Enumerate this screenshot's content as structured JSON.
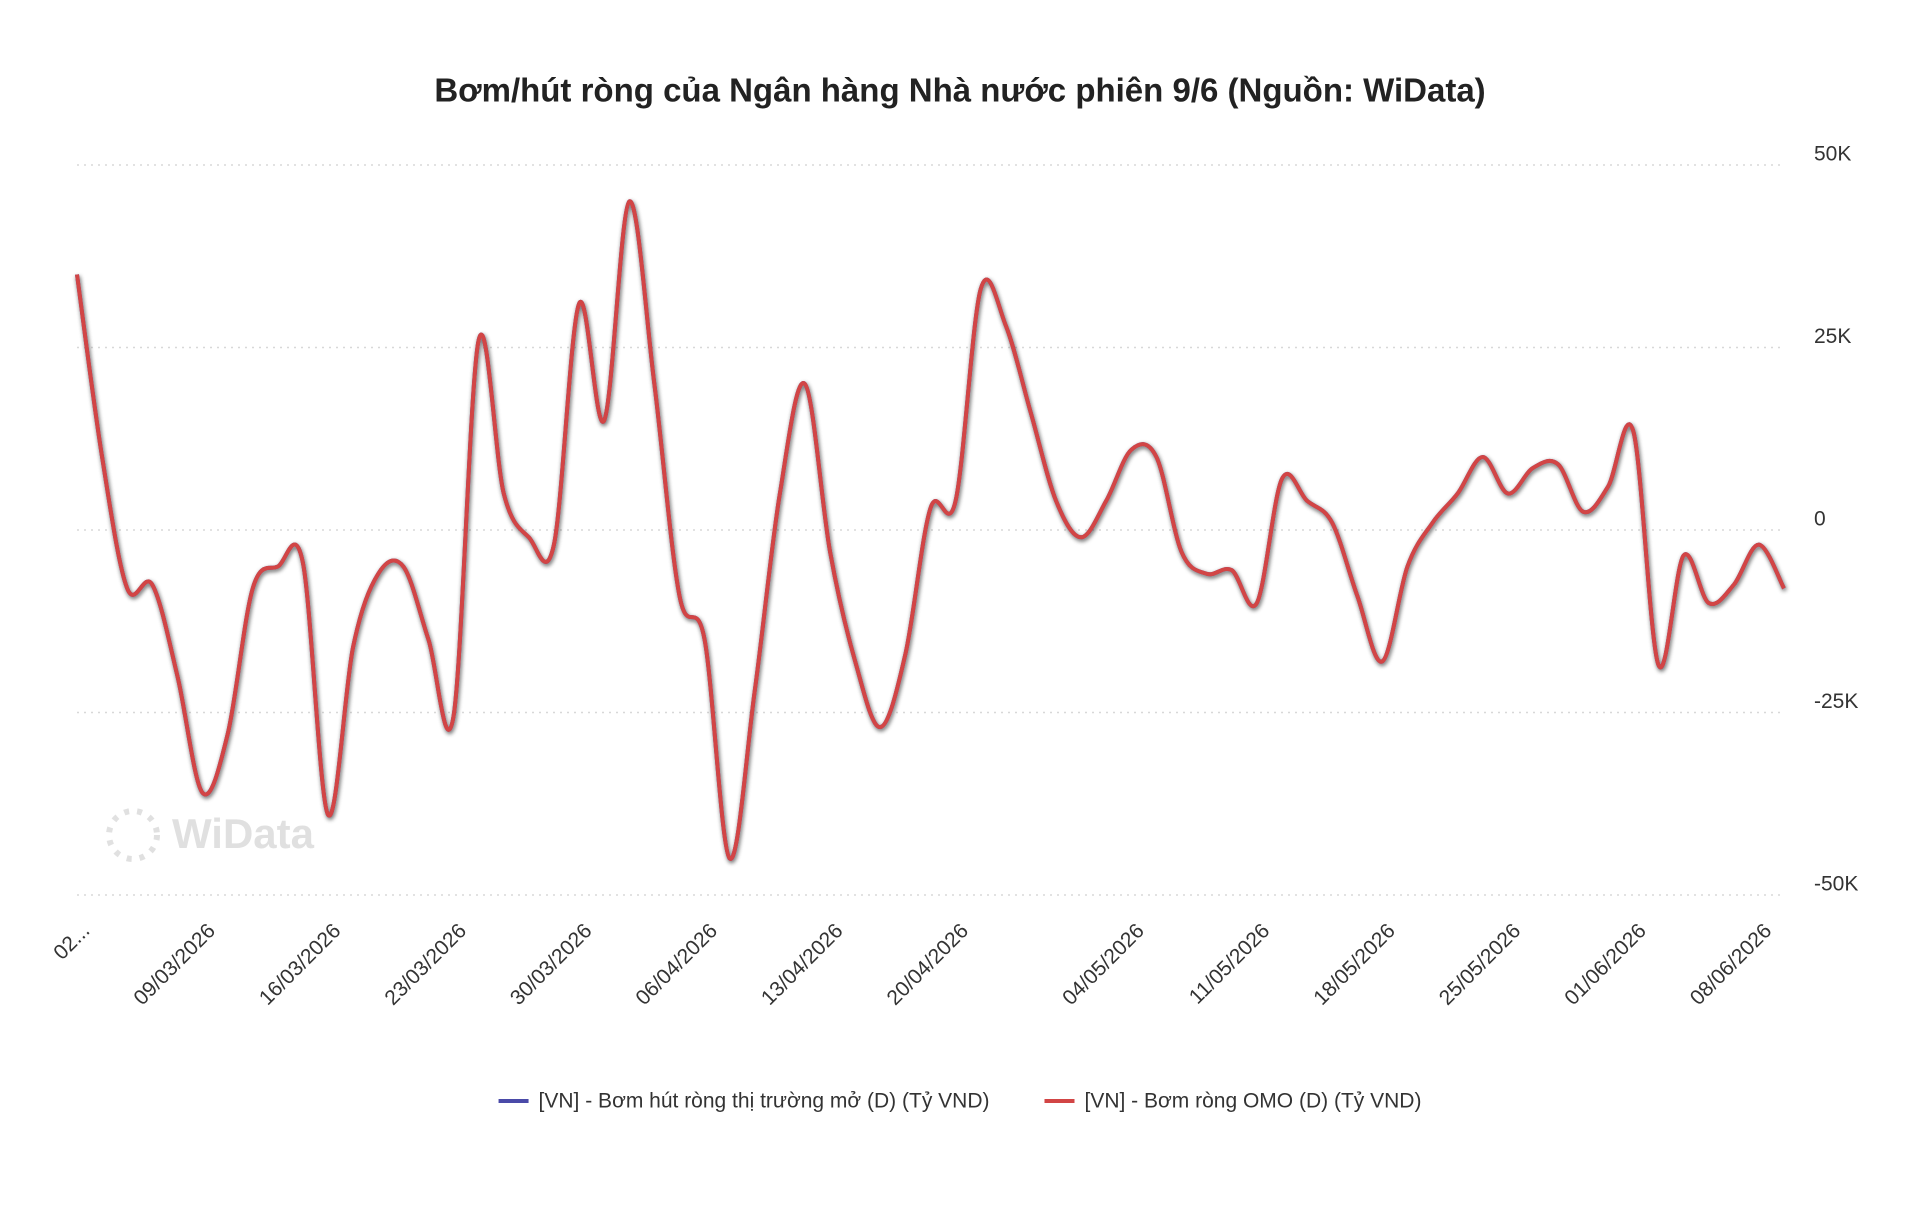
{
  "chart_data": {
    "type": "line",
    "title": "Bơm/hút ròng của Ngân hàng Nhà nước phiên 9/6 (Nguồn: WiData)",
    "watermark": "WiData",
    "categories": [
      "02...",
      null,
      null,
      null,
      null,
      "09/03/2026",
      null,
      null,
      null,
      null,
      "16/03/2026",
      null,
      null,
      null,
      null,
      "23/03/2026",
      null,
      null,
      null,
      null,
      "30/03/2026",
      null,
      null,
      null,
      null,
      "06/04/2026",
      null,
      null,
      null,
      null,
      "13/04/2026",
      null,
      null,
      null,
      null,
      "20/04/2026",
      null,
      null,
      null,
      null,
      null,
      null,
      "04/05/2026",
      null,
      null,
      null,
      null,
      "11/05/2026",
      null,
      null,
      null,
      null,
      "18/05/2026",
      null,
      null,
      null,
      null,
      "25/05/2026",
      null,
      null,
      null,
      null,
      "01/06/2026",
      null,
      null,
      null,
      null,
      "08/06/2026",
      null
    ],
    "series": [
      {
        "name": "[VN] - Bơm hút ròng thị trường mở (D) (Tỷ VND)",
        "color": "#4a4aa8",
        "values": [
          35000,
          10000,
          -8000,
          -7500,
          -20000,
          -36000,
          -28000,
          -8000,
          -5000,
          -4500,
          -39000,
          -16000,
          -6000,
          -5000,
          -15000,
          -25500,
          26000,
          5000,
          -1000,
          -2000,
          31000,
          15000,
          45000,
          20000,
          -9000,
          -15000,
          -45000,
          -22000,
          5000,
          20000,
          -3000,
          -18000,
          -27000,
          -17000,
          3000,
          4000,
          33000,
          28000,
          16000,
          4000,
          -1000,
          4000,
          11000,
          10000,
          -3000,
          -6000,
          -5500,
          -10000,
          7000,
          4000,
          1000,
          -9000,
          -18000,
          -5000,
          1000,
          5000,
          10000,
          5000,
          8500,
          9000,
          2500,
          6000,
          13500,
          -18500,
          -3500,
          -10000,
          -7500,
          -2000,
          -8000
        ]
      },
      {
        "name": "[VN] - Bơm ròng OMO (D) (Tỷ VND)",
        "color": "#d24545",
        "values": [
          35000,
          10000,
          -8000,
          -7500,
          -20000,
          -36000,
          -28000,
          -8000,
          -5000,
          -4500,
          -39000,
          -16000,
          -6000,
          -5000,
          -15000,
          -25500,
          26000,
          5000,
          -1000,
          -2000,
          31000,
          15000,
          45000,
          20000,
          -9000,
          -15000,
          -45000,
          -22000,
          5000,
          20000,
          -3000,
          -18000,
          -27000,
          -17000,
          3000,
          4000,
          33000,
          28000,
          16000,
          4000,
          -1000,
          4000,
          11000,
          10000,
          -3000,
          -6000,
          -5500,
          -10000,
          7000,
          4000,
          1000,
          -9000,
          -18000,
          -5000,
          1000,
          5000,
          10000,
          5000,
          8500,
          9000,
          2500,
          6000,
          13500,
          -18500,
          -3500,
          -10000,
          -7500,
          -2000,
          -8000
        ]
      }
    ],
    "ylim": [
      -50000,
      50000
    ],
    "yticks": [
      {
        "value": -50000,
        "label": "-50K"
      },
      {
        "value": -25000,
        "label": "-25K"
      },
      0,
      {
        "value": 25000,
        "label": "25K"
      },
      {
        "value": 50000,
        "label": "50K"
      }
    ],
    "grid": true,
    "legend": "bottom"
  }
}
